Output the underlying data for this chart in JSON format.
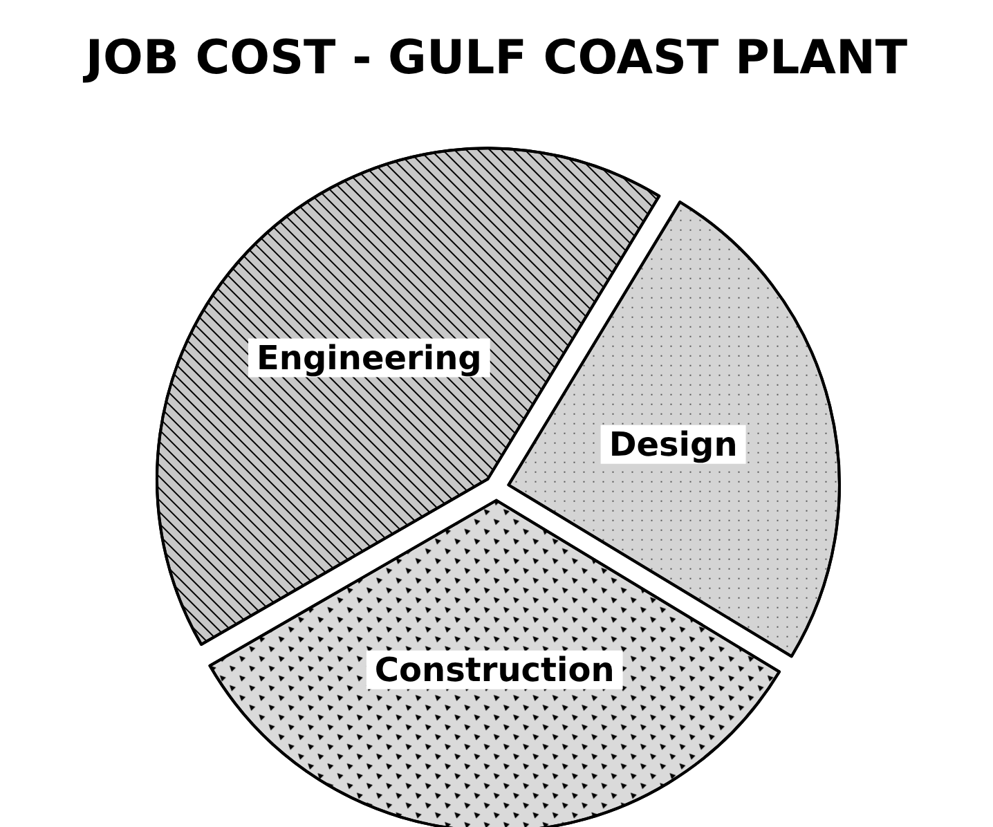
{
  "chart_data": {
    "type": "pie",
    "title": "JOB COST - GULF COAST PLANT",
    "categories": [
      "Engineering",
      "Design",
      "Construction"
    ],
    "values": [
      42,
      25,
      33
    ],
    "colors": [
      "#c8c8c8",
      "#d4d4d4",
      "#dadada"
    ],
    "legend": false
  }
}
